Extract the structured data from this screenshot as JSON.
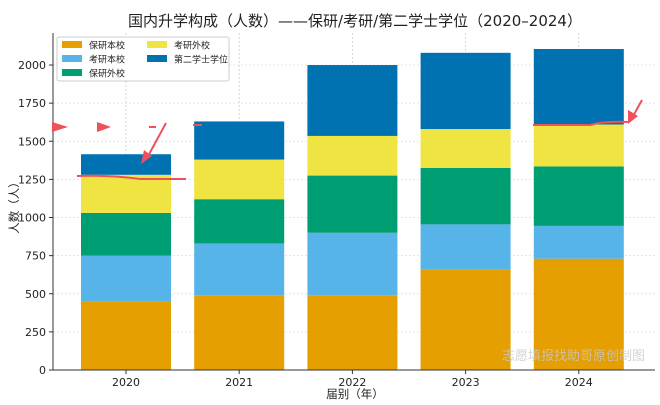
{
  "chart_data": {
    "type": "bar",
    "stacked": true,
    "title": "国内升学构成（人数）——保研/考研/第二学士学位（2020–2024）",
    "xlabel": "届别（年）",
    "ylabel": "人数（人）",
    "categories": [
      "2020",
      "2021",
      "2022",
      "2023",
      "2024"
    ],
    "ylim": [
      0,
      2210
    ],
    "yticks": [
      0,
      250,
      500,
      750,
      1000,
      1250,
      1500,
      1750,
      2000
    ],
    "grid": true,
    "legend_position": "top-left",
    "series": [
      {
        "name": "保研本校",
        "color": "#E69F00",
        "values": [
          450,
          490,
          490,
          660,
          730
        ]
      },
      {
        "name": "考研本校",
        "color": "#56B4E9",
        "values": [
          300,
          340,
          410,
          295,
          215
        ]
      },
      {
        "name": "保研外校",
        "color": "#009E73",
        "values": [
          280,
          290,
          375,
          370,
          390
        ]
      },
      {
        "name": "考研外校",
        "color": "#F0E442",
        "values": [
          250,
          260,
          260,
          255,
          275
        ]
      },
      {
        "name": "第二学士学位",
        "color": "#0072B2",
        "values": [
          135,
          250,
          465,
          500,
          495
        ]
      }
    ],
    "watermark": "志愿填报找助哥原创制图",
    "annotation_color": "#F0505A"
  }
}
